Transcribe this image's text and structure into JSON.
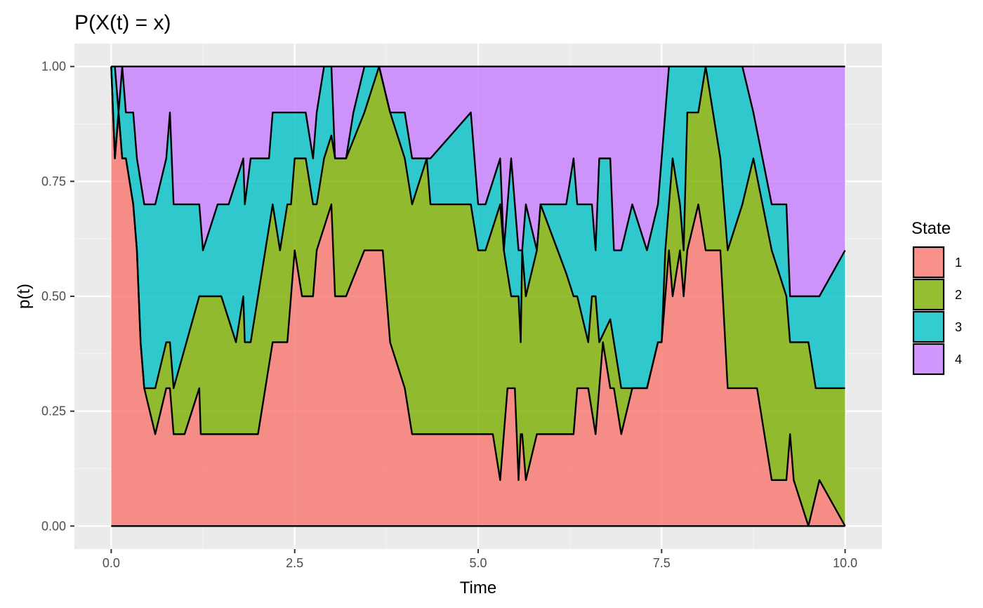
{
  "chart_data": {
    "type": "area",
    "stacked": true,
    "title": "P(X(t) = x)",
    "xlabel": "Time",
    "ylabel": "p(t)",
    "xlim": [
      0,
      10
    ],
    "ylim": [
      0,
      1
    ],
    "x_ticks": [
      "0.0",
      "2.5",
      "5.0",
      "7.5",
      "10.0"
    ],
    "x_tick_values": [
      0,
      2.5,
      5,
      7.5,
      10
    ],
    "y_ticks": [
      "0.00",
      "0.25",
      "0.50",
      "0.75",
      "1.00"
    ],
    "y_tick_values": [
      0,
      0.25,
      0.5,
      0.75,
      1
    ],
    "grid": true,
    "legend": {
      "title": "State",
      "position": "right"
    },
    "series": [
      {
        "name": "1",
        "color": "#F8766D"
      },
      {
        "name": "2",
        "color": "#7CAE00"
      },
      {
        "name": "3",
        "color": "#00BFC4"
      },
      {
        "name": "4",
        "color": "#C77CFF"
      }
    ],
    "boundary_lines": [
      {
        "between": "1|2",
        "points": [
          [
            0,
            1.0
          ],
          [
            0.05,
            0.8
          ],
          [
            0.1,
            0.9
          ],
          [
            0.15,
            0.8
          ],
          [
            0.2,
            0.8
          ],
          [
            0.3,
            0.7
          ],
          [
            0.35,
            0.6
          ],
          [
            0.4,
            0.4
          ],
          [
            0.45,
            0.3
          ],
          [
            0.6,
            0.2
          ],
          [
            0.75,
            0.3
          ],
          [
            0.8,
            0.3
          ],
          [
            0.85,
            0.2
          ],
          [
            1.0,
            0.2
          ],
          [
            1.2,
            0.3
          ],
          [
            1.22,
            0.2
          ],
          [
            2.0,
            0.2
          ],
          [
            2.1,
            0.3
          ],
          [
            2.2,
            0.4
          ],
          [
            2.4,
            0.4
          ],
          [
            2.45,
            0.5
          ],
          [
            2.5,
            0.6
          ],
          [
            2.6,
            0.5
          ],
          [
            2.75,
            0.5
          ],
          [
            2.8,
            0.6
          ],
          [
            2.9,
            0.65
          ],
          [
            3.0,
            0.7
          ],
          [
            3.05,
            0.5
          ],
          [
            3.2,
            0.5
          ],
          [
            3.45,
            0.6
          ],
          [
            3.7,
            0.6
          ],
          [
            3.8,
            0.4
          ],
          [
            4.0,
            0.3
          ],
          [
            4.1,
            0.2
          ],
          [
            4.9,
            0.2
          ],
          [
            5.2,
            0.2
          ],
          [
            5.3,
            0.1
          ],
          [
            5.35,
            0.2
          ],
          [
            5.4,
            0.3
          ],
          [
            5.5,
            0.3
          ],
          [
            5.55,
            0.1
          ],
          [
            5.58,
            0.2
          ],
          [
            5.6,
            0.2
          ],
          [
            5.65,
            0.1
          ],
          [
            5.8,
            0.2
          ],
          [
            6.3,
            0.2
          ],
          [
            6.35,
            0.3
          ],
          [
            6.5,
            0.3
          ],
          [
            6.55,
            0.25
          ],
          [
            6.6,
            0.2
          ],
          [
            6.65,
            0.3
          ],
          [
            6.7,
            0.4
          ],
          [
            6.8,
            0.3
          ],
          [
            6.85,
            0.3
          ],
          [
            6.95,
            0.2
          ],
          [
            7.1,
            0.3
          ],
          [
            7.3,
            0.3
          ],
          [
            7.45,
            0.4
          ],
          [
            7.5,
            0.4
          ],
          [
            7.55,
            0.5
          ],
          [
            7.6,
            0.6
          ],
          [
            7.65,
            0.5
          ],
          [
            7.75,
            0.6
          ],
          [
            7.8,
            0.5
          ],
          [
            7.85,
            0.6
          ],
          [
            8.0,
            0.7
          ],
          [
            8.1,
            0.6
          ],
          [
            8.2,
            0.6
          ],
          [
            8.3,
            0.6
          ],
          [
            8.4,
            0.3
          ],
          [
            8.8,
            0.3
          ],
          [
            9.0,
            0.1
          ],
          [
            9.2,
            0.1
          ],
          [
            9.25,
            0.2
          ],
          [
            9.3,
            0.1
          ],
          [
            9.5,
            0.0
          ],
          [
            9.65,
            0.1
          ],
          [
            10.0,
            0.0
          ]
        ]
      },
      {
        "between": "2|3",
        "points": [
          [
            0,
            1.0
          ],
          [
            0.05,
            0.8
          ],
          [
            0.1,
            0.9
          ],
          [
            0.15,
            0.8
          ],
          [
            0.2,
            0.8
          ],
          [
            0.3,
            0.7
          ],
          [
            0.35,
            0.6
          ],
          [
            0.4,
            0.4
          ],
          [
            0.45,
            0.3
          ],
          [
            0.6,
            0.3
          ],
          [
            0.75,
            0.4
          ],
          [
            0.8,
            0.4
          ],
          [
            0.85,
            0.3
          ],
          [
            1.2,
            0.5
          ],
          [
            1.5,
            0.5
          ],
          [
            1.6,
            0.45
          ],
          [
            1.7,
            0.4
          ],
          [
            1.8,
            0.5
          ],
          [
            1.82,
            0.4
          ],
          [
            1.9,
            0.4
          ],
          [
            2.0,
            0.5
          ],
          [
            2.1,
            0.6
          ],
          [
            2.2,
            0.7
          ],
          [
            2.3,
            0.6
          ],
          [
            2.4,
            0.7
          ],
          [
            2.45,
            0.7
          ],
          [
            2.5,
            0.8
          ],
          [
            2.65,
            0.8
          ],
          [
            2.75,
            0.7
          ],
          [
            2.8,
            0.7
          ],
          [
            2.9,
            0.8
          ],
          [
            3.0,
            0.85
          ],
          [
            3.05,
            0.8
          ],
          [
            3.2,
            0.8
          ],
          [
            3.45,
            0.9
          ],
          [
            3.65,
            1.0
          ],
          [
            3.8,
            0.9
          ],
          [
            3.9,
            0.85
          ],
          [
            4.0,
            0.8
          ],
          [
            4.1,
            0.7
          ],
          [
            4.3,
            0.8
          ],
          [
            4.35,
            0.7
          ],
          [
            4.9,
            0.7
          ],
          [
            5.0,
            0.6
          ],
          [
            5.1,
            0.6
          ],
          [
            5.3,
            0.7
          ],
          [
            5.35,
            0.6
          ],
          [
            5.45,
            0.5
          ],
          [
            5.55,
            0.5
          ],
          [
            5.58,
            0.4
          ],
          [
            5.6,
            0.6
          ],
          [
            5.65,
            0.5
          ],
          [
            5.8,
            0.6
          ],
          [
            5.85,
            0.7
          ],
          [
            6.2,
            0.55
          ],
          [
            6.3,
            0.5
          ],
          [
            6.35,
            0.5
          ],
          [
            6.5,
            0.4
          ],
          [
            6.55,
            0.5
          ],
          [
            6.6,
            0.5
          ],
          [
            6.65,
            0.4
          ],
          [
            6.8,
            0.45
          ],
          [
            6.85,
            0.4
          ],
          [
            6.95,
            0.3
          ],
          [
            7.1,
            0.3
          ],
          [
            7.3,
            0.3
          ],
          [
            7.45,
            0.4
          ],
          [
            7.5,
            0.4
          ],
          [
            7.55,
            0.6
          ],
          [
            7.6,
            0.7
          ],
          [
            7.65,
            0.8
          ],
          [
            7.75,
            0.7
          ],
          [
            7.8,
            0.6
          ],
          [
            7.85,
            0.9
          ],
          [
            8.0,
            0.9
          ],
          [
            8.1,
            1.0
          ],
          [
            8.3,
            0.8
          ],
          [
            8.4,
            0.6
          ],
          [
            8.6,
            0.7
          ],
          [
            8.75,
            0.8
          ],
          [
            9.0,
            0.6
          ],
          [
            9.2,
            0.5
          ],
          [
            9.25,
            0.4
          ],
          [
            9.3,
            0.4
          ],
          [
            9.5,
            0.4
          ],
          [
            9.6,
            0.3
          ],
          [
            9.65,
            0.3
          ],
          [
            10.0,
            0.3
          ]
        ]
      },
      {
        "between": "3|4",
        "points": [
          [
            0,
            1.0
          ],
          [
            0.05,
            1.0
          ],
          [
            0.1,
            0.9
          ],
          [
            0.15,
            1.0
          ],
          [
            0.2,
            0.9
          ],
          [
            0.3,
            0.9
          ],
          [
            0.35,
            0.8
          ],
          [
            0.4,
            0.75
          ],
          [
            0.45,
            0.7
          ],
          [
            0.6,
            0.7
          ],
          [
            0.75,
            0.8
          ],
          [
            0.8,
            0.9
          ],
          [
            0.85,
            0.7
          ],
          [
            1.2,
            0.7
          ],
          [
            1.25,
            0.6
          ],
          [
            1.35,
            0.65
          ],
          [
            1.45,
            0.7
          ],
          [
            1.6,
            0.7
          ],
          [
            1.7,
            0.75
          ],
          [
            1.8,
            0.8
          ],
          [
            1.82,
            0.7
          ],
          [
            1.9,
            0.8
          ],
          [
            2.15,
            0.8
          ],
          [
            2.2,
            0.9
          ],
          [
            2.5,
            0.9
          ],
          [
            2.65,
            0.9
          ],
          [
            2.75,
            0.8
          ],
          [
            2.8,
            0.9
          ],
          [
            2.9,
            1.0
          ],
          [
            3.0,
            1.0
          ],
          [
            3.05,
            0.8
          ],
          [
            3.2,
            0.8
          ],
          [
            3.3,
            0.9
          ],
          [
            3.45,
            1.0
          ],
          [
            3.65,
            1.0
          ],
          [
            3.8,
            0.9
          ],
          [
            3.9,
            0.9
          ],
          [
            4.0,
            0.9
          ],
          [
            4.1,
            0.8
          ],
          [
            4.3,
            0.8
          ],
          [
            4.35,
            0.8
          ],
          [
            4.9,
            0.9
          ],
          [
            5.0,
            0.7
          ],
          [
            5.1,
            0.7
          ],
          [
            5.3,
            0.8
          ],
          [
            5.35,
            0.6
          ],
          [
            5.45,
            0.8
          ],
          [
            5.55,
            0.6
          ],
          [
            5.58,
            0.6
          ],
          [
            5.6,
            0.6
          ],
          [
            5.65,
            0.7
          ],
          [
            5.8,
            0.6
          ],
          [
            5.85,
            0.7
          ],
          [
            6.2,
            0.7
          ],
          [
            6.3,
            0.8
          ],
          [
            6.35,
            0.7
          ],
          [
            6.5,
            0.7
          ],
          [
            6.55,
            0.7
          ],
          [
            6.6,
            0.6
          ],
          [
            6.65,
            0.8
          ],
          [
            6.8,
            0.8
          ],
          [
            6.85,
            0.6
          ],
          [
            6.95,
            0.6
          ],
          [
            7.1,
            0.7
          ],
          [
            7.3,
            0.6
          ],
          [
            7.45,
            0.7
          ],
          [
            7.5,
            0.8
          ],
          [
            7.55,
            0.9
          ],
          [
            7.6,
            1.0
          ],
          [
            7.65,
            1.0
          ],
          [
            7.75,
            1.0
          ],
          [
            7.8,
            1.0
          ],
          [
            7.85,
            1.0
          ],
          [
            8.0,
            1.0
          ],
          [
            8.1,
            1.0
          ],
          [
            8.3,
            1.0
          ],
          [
            8.4,
            1.0
          ],
          [
            8.6,
            1.0
          ],
          [
            8.75,
            0.9
          ],
          [
            9.0,
            0.7
          ],
          [
            9.2,
            0.7
          ],
          [
            9.25,
            0.5
          ],
          [
            9.3,
            0.5
          ],
          [
            9.5,
            0.5
          ],
          [
            9.6,
            0.5
          ],
          [
            9.65,
            0.5
          ],
          [
            10.0,
            0.6
          ]
        ]
      }
    ]
  }
}
